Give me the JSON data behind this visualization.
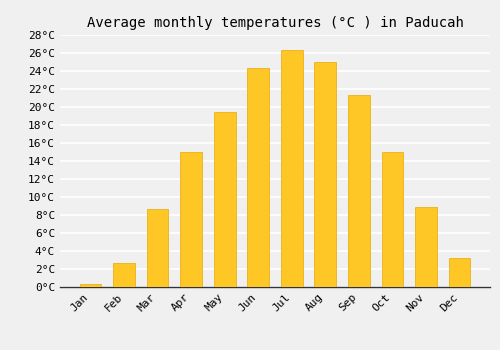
{
  "title": "Average monthly temperatures (°C ) in Paducah",
  "months": [
    "Jan",
    "Feb",
    "Mar",
    "Apr",
    "May",
    "Jun",
    "Jul",
    "Aug",
    "Sep",
    "Oct",
    "Nov",
    "Dec"
  ],
  "temperatures": [
    0.3,
    2.7,
    8.7,
    15.0,
    19.4,
    24.3,
    26.3,
    25.0,
    21.3,
    15.0,
    8.9,
    3.2
  ],
  "bar_color": "#FFC726",
  "bar_edge_color": "#E8A800",
  "ylim": [
    0,
    28
  ],
  "ytick_step": 2,
  "background_color": "#f0f0f0",
  "grid_color": "#ffffff",
  "title_fontsize": 10,
  "tick_fontsize": 8,
  "font_family": "monospace",
  "bar_width": 0.65
}
